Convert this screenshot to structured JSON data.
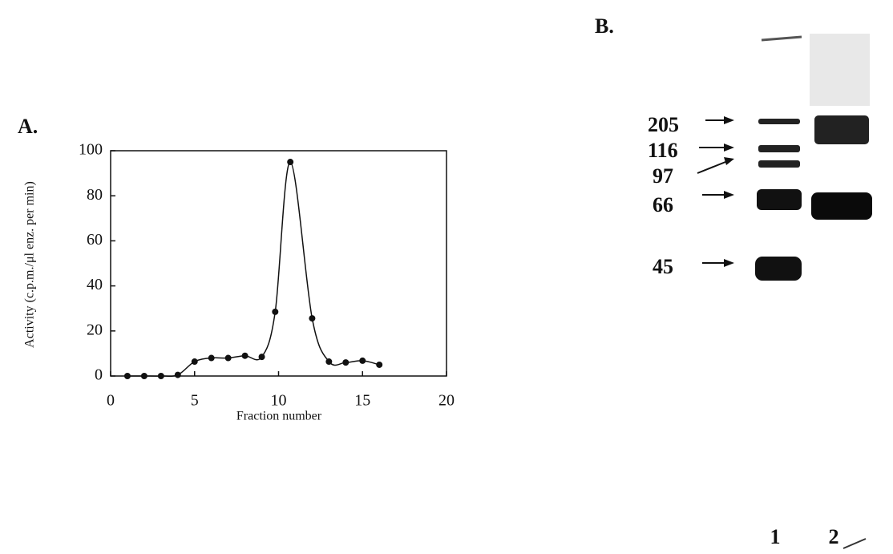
{
  "chart_data": {
    "type": "scatter",
    "panel_label": "A.",
    "x_label": "Fraction number",
    "y_label": "Activity (c.p.m./μl enz. per min)",
    "x": [
      1,
      2,
      3,
      4,
      5,
      6,
      7,
      8,
      9,
      9.8,
      10.7,
      12,
      13,
      14,
      15,
      16
    ],
    "values": [
      0,
      0,
      0,
      0.5,
      6.4,
      8,
      8,
      9,
      8.5,
      28.5,
      95,
      25.6,
      6.4,
      6,
      6.8,
      5
    ],
    "color": "#111111",
    "xlim": [
      0,
      20
    ],
    "xticks": [
      0,
      5,
      10,
      15,
      20
    ],
    "ylim": [
      0,
      100
    ],
    "yticks": [
      0,
      20,
      40,
      60,
      80,
      100
    ]
  },
  "gel": {
    "panel_label": "B.",
    "markers": [
      205,
      116,
      97,
      66,
      45
    ],
    "lanes": [
      1,
      2
    ]
  }
}
